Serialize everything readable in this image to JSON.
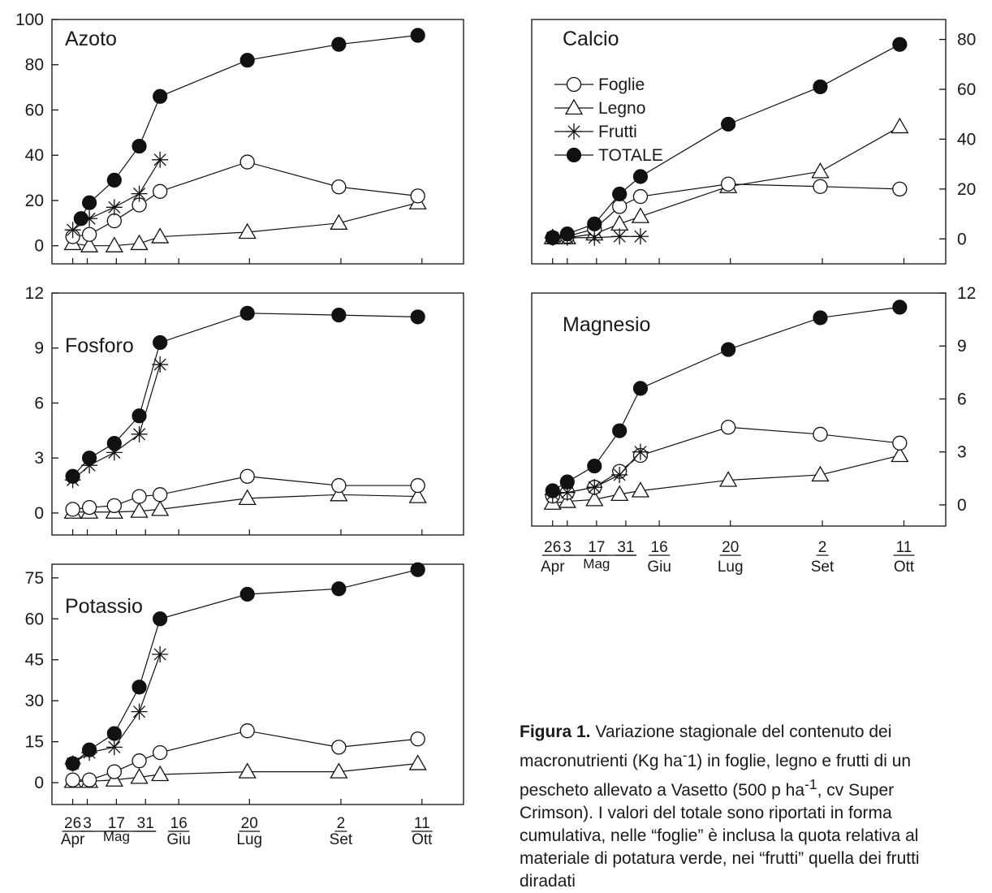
{
  "chart_data": [
    {
      "type": "line",
      "title": "Azoto",
      "ylim": [
        -8,
        100
      ],
      "yticks": [
        0,
        20,
        40,
        60,
        80,
        100
      ],
      "y_axis_side": "left",
      "grid": false,
      "legend": false,
      "series": [
        {
          "name": "TOTALE",
          "marker": "filled-circle",
          "x": [
            "2001-04-30",
            "2001-05-04",
            "2001-05-16",
            "2001-05-28",
            "2001-06-07",
            "2001-07-19",
            "2001-09-01",
            "2001-10-09"
          ],
          "y": [
            12,
            19,
            29,
            44,
            66,
            82,
            89,
            93
          ]
        },
        {
          "name": "Foglie",
          "marker": "open-circle",
          "x": [
            "2001-04-26",
            "2001-05-04",
            "2001-05-16",
            "2001-05-28",
            "2001-06-07",
            "2001-07-19",
            "2001-09-01",
            "2001-10-09"
          ],
          "y": [
            4,
            5,
            11,
            18,
            24,
            37,
            26,
            22
          ]
        },
        {
          "name": "Legno",
          "marker": "open-triangle",
          "x": [
            "2001-04-26",
            "2001-05-04",
            "2001-05-16",
            "2001-05-28",
            "2001-06-07",
            "2001-07-19",
            "2001-09-01",
            "2001-10-09"
          ],
          "y": [
            1,
            0,
            0,
            1,
            4,
            6,
            10,
            19
          ]
        },
        {
          "name": "Frutti",
          "marker": "asterisk",
          "x": [
            "2001-04-26",
            "2001-05-04",
            "2001-05-16",
            "2001-05-28",
            "2001-06-07"
          ],
          "y": [
            7,
            12,
            17,
            23,
            38
          ]
        }
      ]
    },
    {
      "type": "line",
      "title": "Fosforo",
      "ylim": [
        -1.2,
        12
      ],
      "yticks": [
        0,
        3,
        6,
        9,
        12
      ],
      "y_axis_side": "left",
      "grid": false,
      "legend": false,
      "series": [
        {
          "name": "TOTALE",
          "marker": "filled-circle",
          "x": [
            "2001-04-26",
            "2001-05-04",
            "2001-05-16",
            "2001-05-28",
            "2001-06-07",
            "2001-07-19",
            "2001-09-01",
            "2001-10-09"
          ],
          "y": [
            2.0,
            3.0,
            3.8,
            5.3,
            9.3,
            10.9,
            10.8,
            10.7
          ]
        },
        {
          "name": "Foglie",
          "marker": "open-circle",
          "x": [
            "2001-04-26",
            "2001-05-04",
            "2001-05-16",
            "2001-05-28",
            "2001-06-07",
            "2001-07-19",
            "2001-09-01",
            "2001-10-09"
          ],
          "y": [
            0.2,
            0.3,
            0.4,
            0.9,
            1.0,
            2.0,
            1.5,
            1.5
          ]
        },
        {
          "name": "Legno",
          "marker": "open-triangle",
          "x": [
            "2001-04-26",
            "2001-05-04",
            "2001-05-16",
            "2001-05-28",
            "2001-06-07",
            "2001-07-19",
            "2001-09-01",
            "2001-10-09"
          ],
          "y": [
            0.05,
            0.05,
            0.05,
            0.1,
            0.2,
            0.8,
            1.0,
            0.9
          ]
        },
        {
          "name": "Frutti",
          "marker": "asterisk",
          "x": [
            "2001-04-26",
            "2001-05-04",
            "2001-05-16",
            "2001-05-28",
            "2001-06-07"
          ],
          "y": [
            1.8,
            2.6,
            3.3,
            4.3,
            8.1
          ]
        }
      ]
    },
    {
      "type": "line",
      "title": "Potassio",
      "ylim": [
        -8,
        80
      ],
      "yticks": [
        0,
        15,
        30,
        45,
        60,
        75
      ],
      "y_axis_side": "left",
      "grid": false,
      "legend": false,
      "series": [
        {
          "name": "TOTALE",
          "marker": "filled-circle",
          "x": [
            "2001-04-26",
            "2001-05-04",
            "2001-05-16",
            "2001-05-28",
            "2001-06-07",
            "2001-07-19",
            "2001-09-01",
            "2001-10-09"
          ],
          "y": [
            7,
            12,
            18,
            35,
            60,
            69,
            71,
            78
          ]
        },
        {
          "name": "Foglie",
          "marker": "open-circle",
          "x": [
            "2001-04-26",
            "2001-05-04",
            "2001-05-16",
            "2001-05-28",
            "2001-06-07",
            "2001-07-19",
            "2001-09-01",
            "2001-10-09"
          ],
          "y": [
            1,
            1,
            4,
            8,
            11,
            19,
            13,
            16
          ]
        },
        {
          "name": "Legno",
          "marker": "open-triangle",
          "x": [
            "2001-04-26",
            "2001-05-04",
            "2001-05-16",
            "2001-05-28",
            "2001-06-07",
            "2001-07-19",
            "2001-09-01",
            "2001-10-09"
          ],
          "y": [
            0.5,
            0.5,
            1,
            2,
            3,
            4,
            4,
            7
          ]
        },
        {
          "name": "Frutti",
          "marker": "asterisk",
          "x": [
            "2001-04-26",
            "2001-05-04",
            "2001-05-16",
            "2001-05-28",
            "2001-06-07"
          ],
          "y": [
            7,
            11,
            13,
            26,
            47
          ]
        }
      ]
    },
    {
      "type": "line",
      "title": "Calcio",
      "ylim": [
        -10,
        88
      ],
      "yticks": [
        0,
        20,
        40,
        60,
        80
      ],
      "y_axis_side": "right",
      "grid": false,
      "legend": true,
      "legend_placement": "top-left",
      "legend_entries": [
        "Foglie",
        "Legno",
        "Frutti",
        "TOTALE"
      ],
      "series": [
        {
          "name": "TOTALE",
          "marker": "filled-circle",
          "x": [
            "2001-04-26",
            "2001-05-03",
            "2001-05-16",
            "2001-05-28",
            "2001-06-07",
            "2001-07-19",
            "2001-09-01",
            "2001-10-09"
          ],
          "y": [
            0.5,
            2,
            6,
            18,
            25,
            46,
            61,
            78
          ]
        },
        {
          "name": "Foglie",
          "marker": "open-circle",
          "x": [
            "2001-04-26",
            "2001-05-03",
            "2001-05-16",
            "2001-05-28",
            "2001-06-07",
            "2001-07-19",
            "2001-09-01",
            "2001-10-09"
          ],
          "y": [
            0.5,
            1,
            4,
            13,
            17,
            22,
            21,
            20
          ]
        },
        {
          "name": "Legno",
          "marker": "open-triangle",
          "x": [
            "2001-04-26",
            "2001-05-03",
            "2001-05-16",
            "2001-05-28",
            "2001-06-07",
            "2001-07-19",
            "2001-09-01",
            "2001-10-09"
          ],
          "y": [
            0.5,
            0.5,
            2,
            6,
            9,
            21,
            27,
            45
          ]
        },
        {
          "name": "Frutti",
          "marker": "asterisk",
          "x": [
            "2001-04-26",
            "2001-05-03",
            "2001-05-16",
            "2001-05-28",
            "2001-06-07"
          ],
          "y": [
            0.5,
            0.5,
            0.5,
            1,
            1
          ]
        }
      ]
    },
    {
      "type": "line",
      "title": "Magnesio",
      "ylim": [
        -1.2,
        12
      ],
      "yticks": [
        0,
        3,
        6,
        9,
        12
      ],
      "y_axis_side": "right",
      "grid": false,
      "legend": false,
      "series": [
        {
          "name": "TOTALE",
          "marker": "filled-circle",
          "x": [
            "2001-04-26",
            "2001-05-03",
            "2001-05-16",
            "2001-05-28",
            "2001-06-07",
            "2001-07-19",
            "2001-09-01",
            "2001-10-09"
          ],
          "y": [
            0.8,
            1.3,
            2.2,
            4.2,
            6.6,
            8.8,
            10.6,
            11.2
          ]
        },
        {
          "name": "Foglie",
          "marker": "open-circle",
          "x": [
            "2001-04-26",
            "2001-05-03",
            "2001-05-16",
            "2001-05-28",
            "2001-06-07",
            "2001-07-19",
            "2001-09-01",
            "2001-10-09"
          ],
          "y": [
            0.5,
            0.7,
            1.0,
            1.9,
            2.8,
            4.4,
            4.0,
            3.5
          ]
        },
        {
          "name": "Legno",
          "marker": "open-triangle",
          "x": [
            "2001-04-26",
            "2001-05-03",
            "2001-05-16",
            "2001-05-28",
            "2001-06-07",
            "2001-07-19",
            "2001-09-01",
            "2001-10-09"
          ],
          "y": [
            0.1,
            0.2,
            0.3,
            0.6,
            0.8,
            1.4,
            1.7,
            2.8
          ]
        },
        {
          "name": "Frutti",
          "marker": "asterisk",
          "x": [
            "2001-04-26",
            "2001-05-03",
            "2001-05-16",
            "2001-05-28",
            "2001-06-07"
          ],
          "y": [
            0.6,
            0.7,
            1.0,
            1.7,
            3.0
          ]
        }
      ]
    }
  ],
  "x_axis": {
    "range": [
      "2001-04-16",
      "2001-10-31"
    ],
    "minor_ticks": [
      "2001-04-26",
      "2001-05-03",
      "2001-05-17",
      "2001-05-31",
      "2001-06-16",
      "2001-07-20",
      "2001-09-02",
      "2001-10-11"
    ],
    "day_labels": [
      {
        "text": "26",
        "date": "2001-04-26"
      },
      {
        "text": "3",
        "date": "2001-05-03"
      },
      {
        "text": "17",
        "date": "2001-05-17"
      },
      {
        "text": "31",
        "date": "2001-05-31"
      },
      {
        "text": "16",
        "date": "2001-06-16"
      },
      {
        "text": "20",
        "date": "2001-07-20"
      },
      {
        "text": "2",
        "date": "2001-09-02"
      },
      {
        "text": "11",
        "date": "2001-10-11"
      }
    ],
    "month_labels": [
      {
        "text": "Apr",
        "date": "2001-04-26"
      },
      {
        "text": "Mag",
        "date": "2001-05-17"
      },
      {
        "text": "Giu",
        "date": "2001-06-16"
      },
      {
        "text": "Lug",
        "date": "2001-07-20"
      },
      {
        "text": "Set",
        "date": "2001-09-02"
      },
      {
        "text": "Ott",
        "date": "2001-10-11"
      }
    ]
  },
  "caption": {
    "label": "Figura 1.",
    "text_before_sup": " Variazione stagionale del contenuto dei macronutrienti  (Kg ha",
    "sup": "-",
    "text_after_sup": "1) in foglie, legno e frutti di un pescheto allevato a Vasetto (500 p ha",
    "sup2": "-1",
    "text_end": ", cv Super Crimson). I valori del totale sono riportati in forma cumulativa, nelle “foglie” è inclusa la quota relativa al materiale di potatura verde, nei “frutti” quella dei frutti diradati"
  }
}
